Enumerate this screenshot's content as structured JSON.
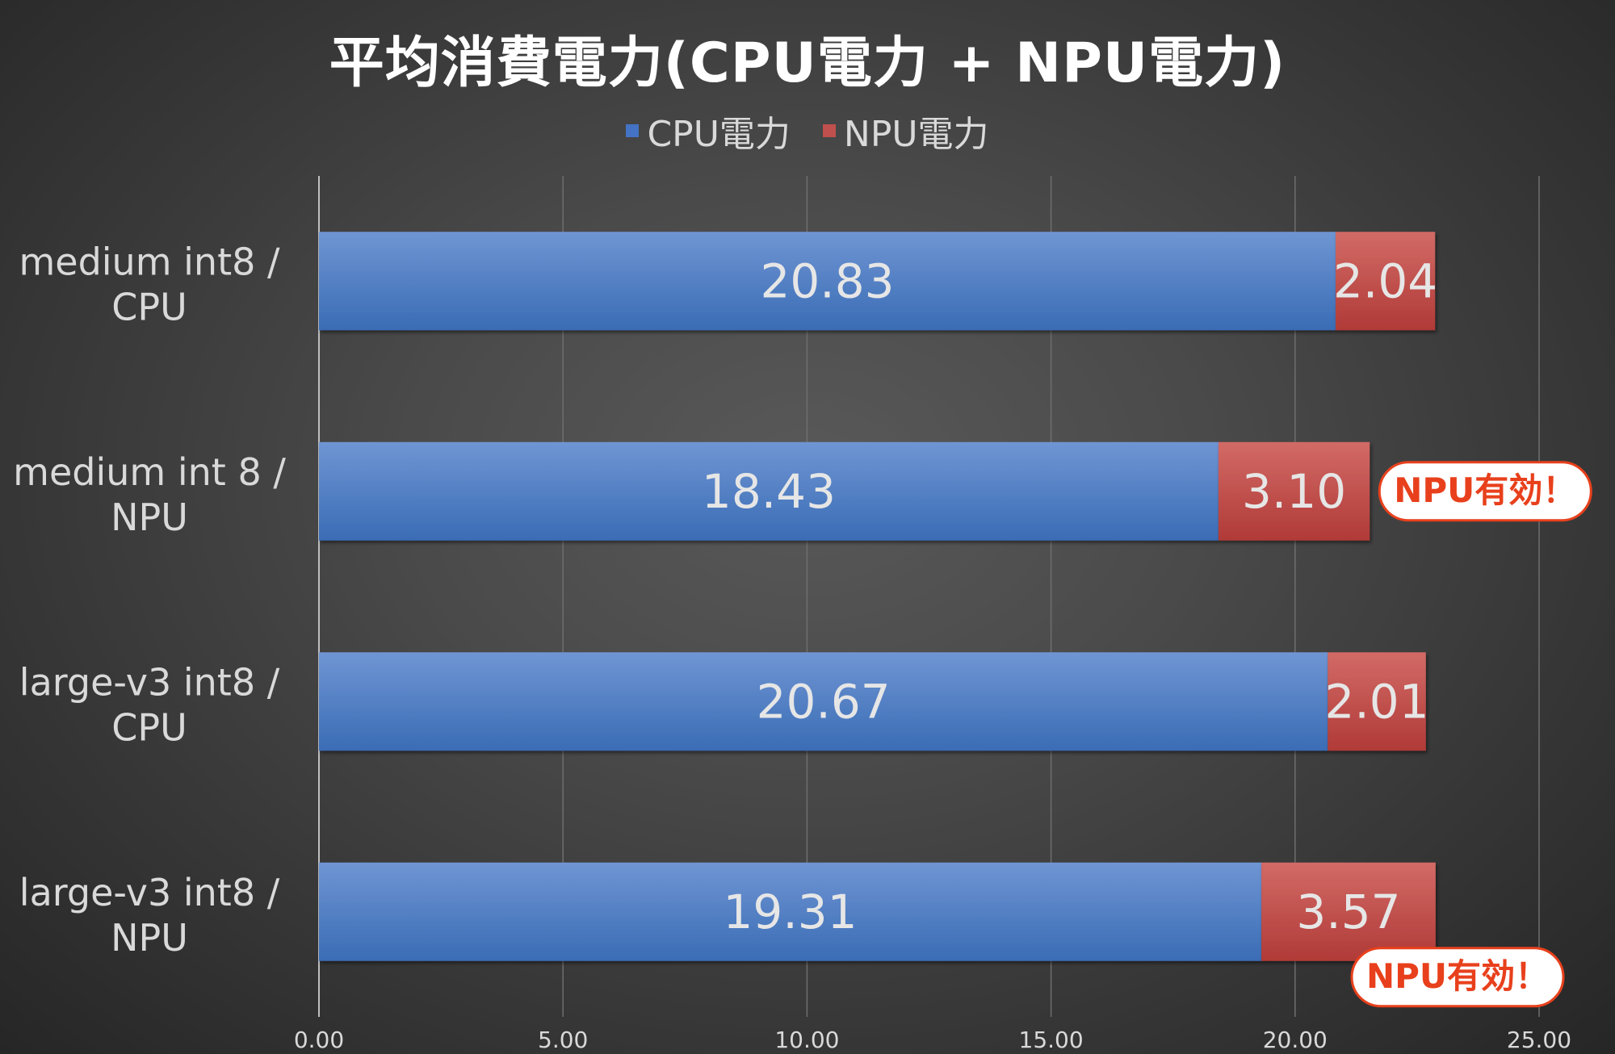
{
  "chart_data": {
    "type": "bar",
    "orientation": "horizontal",
    "stacked": true,
    "title": "平均消費電力(CPU電力 + NPU電力)",
    "categories": [
      [
        "medium int8 /",
        "CPU"
      ],
      [
        "medium int 8 /",
        "NPU"
      ],
      [
        "large-v3 int8 /",
        "CPU"
      ],
      [
        "large-v3 int8 /",
        "NPU"
      ]
    ],
    "series": [
      {
        "name": "CPU電力",
        "color": "#4472c4",
        "values": [
          20.83,
          18.43,
          20.67,
          19.31
        ]
      },
      {
        "name": "NPU電力",
        "color": "#c0504d",
        "values": [
          2.04,
          3.1,
          2.01,
          3.57
        ]
      }
    ],
    "xlim": [
      0,
      25
    ],
    "x_ticks": [
      "0.00",
      "5.00",
      "10.00",
      "15.00",
      "20.00",
      "25.00"
    ],
    "x_tick_values": [
      0,
      5,
      10,
      15,
      20,
      25
    ],
    "grid": "vertical",
    "legend_placement": "top-center",
    "annotations": [
      {
        "text": "NPU有効！",
        "category_index": 1
      },
      {
        "text": "NPU有効！",
        "category_index": 3
      }
    ]
  }
}
